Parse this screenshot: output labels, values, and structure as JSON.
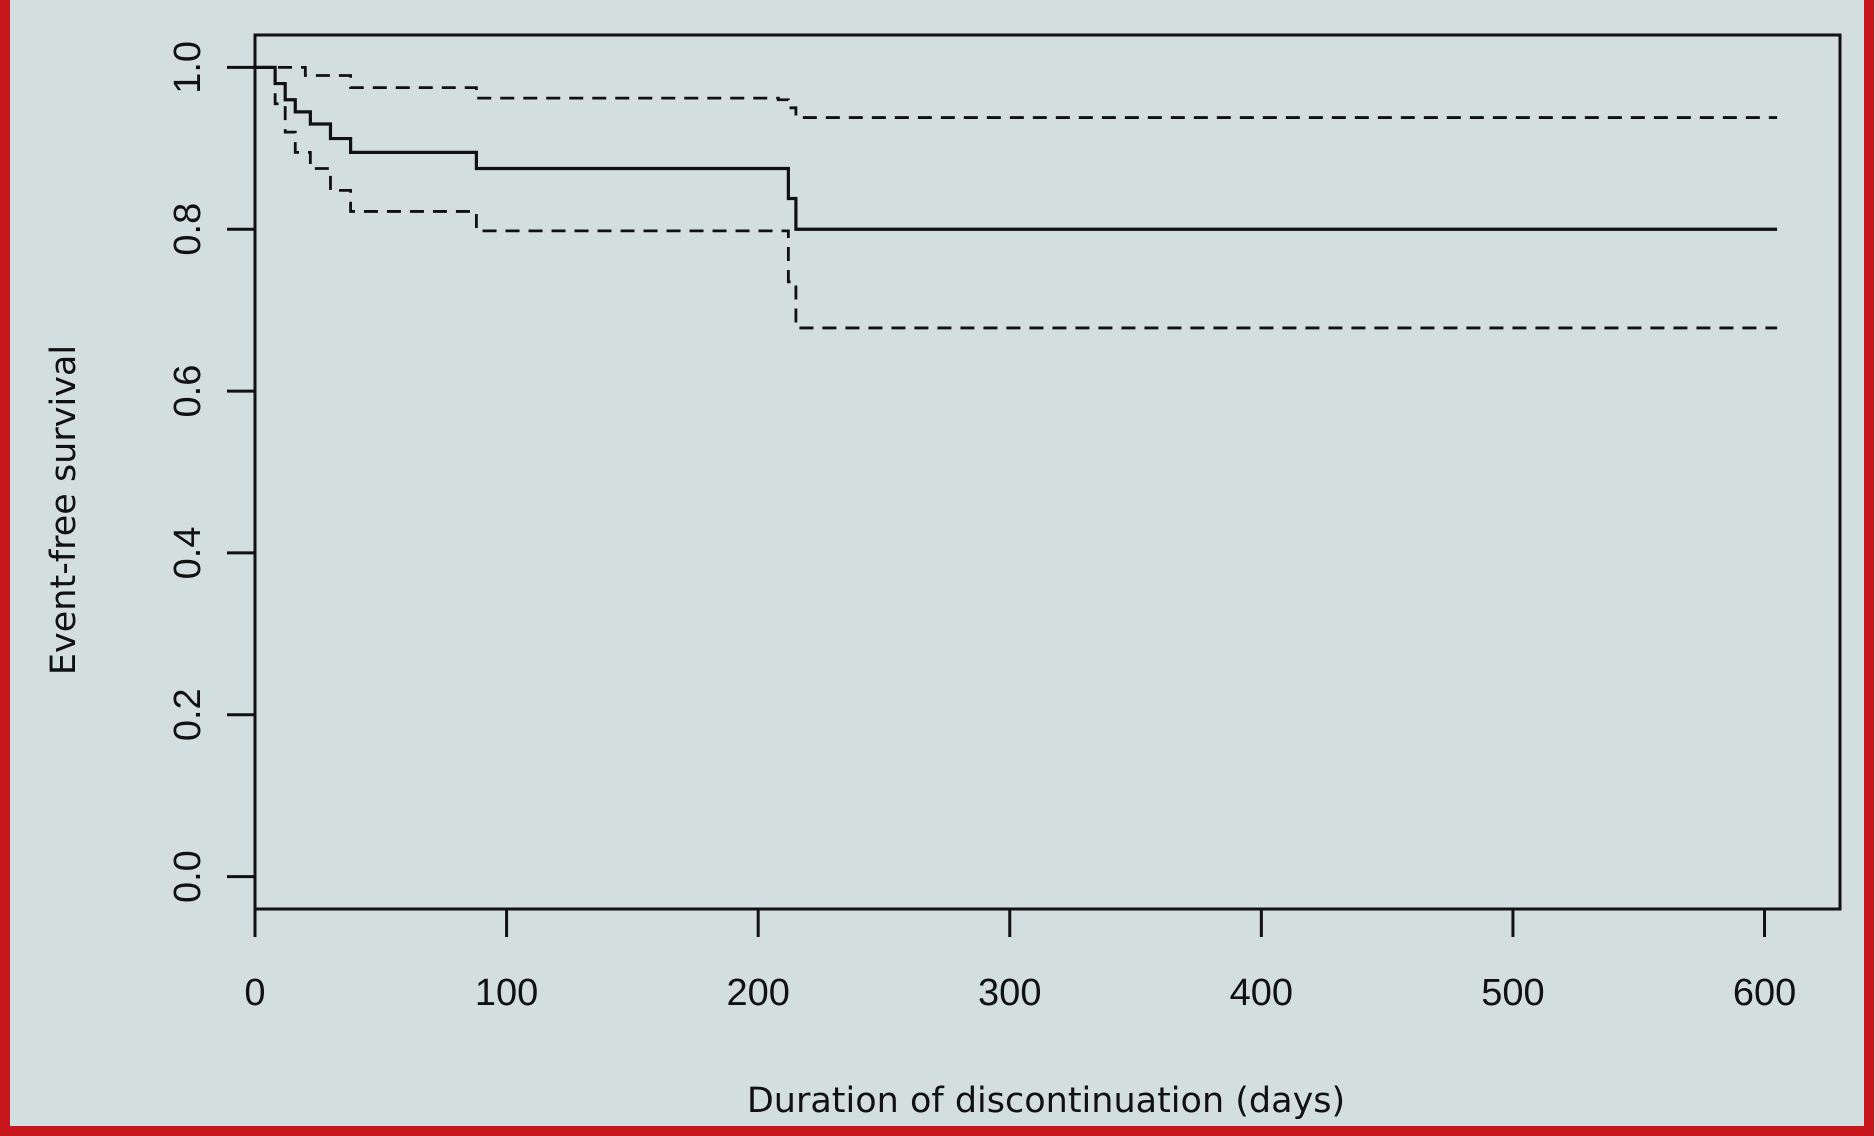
{
  "colors": {
    "background": "#d3dfdf",
    "frame_red": "#c8161d",
    "page_blue": "#1f3f8a",
    "ink": "#111111"
  },
  "chart_data": {
    "type": "line",
    "title": "",
    "xlabel": "Duration of discontinuation (days)",
    "ylabel": "Event-free survival",
    "xlim": [
      0,
      630
    ],
    "ylim": [
      -0.04,
      1.04
    ],
    "xticks": [
      0,
      100,
      200,
      300,
      400,
      500,
      600
    ],
    "xtick_labels": [
      "0",
      "100",
      "200",
      "300",
      "400",
      "500",
      "600"
    ],
    "yticks": [
      0.0,
      0.2,
      0.4,
      0.6,
      0.8,
      1.0
    ],
    "ytick_labels": [
      "0.0",
      "0.2",
      "0.4",
      "0.6",
      "0.8",
      "1.0"
    ],
    "grid": false,
    "legend": "none",
    "series": [
      {
        "style": "solid",
        "step": true,
        "x": [
          0,
          8,
          12,
          16,
          22,
          30,
          38,
          88,
          208,
          212,
          215,
          605
        ],
        "y": [
          1.0,
          0.98,
          0.96,
          0.945,
          0.93,
          0.912,
          0.895,
          0.875,
          0.875,
          0.838,
          0.8,
          0.8
        ]
      },
      {
        "style": "dashed",
        "step": true,
        "x": [
          0,
          20,
          38,
          88,
          208,
          212,
          215,
          605
        ],
        "y": [
          1.0,
          0.99,
          0.975,
          0.962,
          0.96,
          0.95,
          0.938,
          0.938
        ]
      },
      {
        "style": "dashed",
        "step": true,
        "x": [
          0,
          8,
          12,
          16,
          22,
          30,
          38,
          88,
          208,
          212,
          215,
          605
        ],
        "y": [
          1.0,
          0.955,
          0.92,
          0.895,
          0.875,
          0.848,
          0.822,
          0.798,
          0.798,
          0.735,
          0.678,
          0.678
        ]
      }
    ]
  }
}
